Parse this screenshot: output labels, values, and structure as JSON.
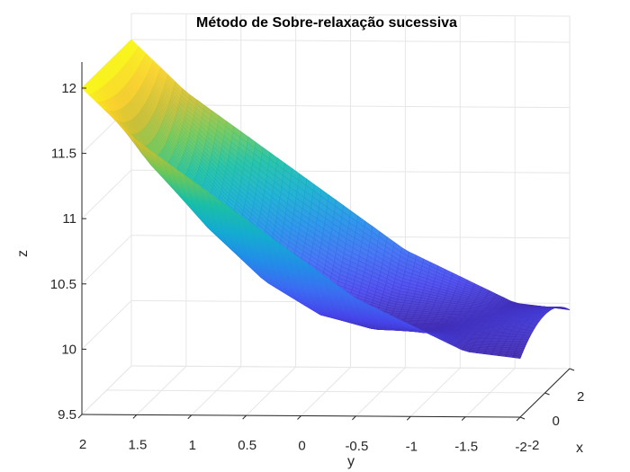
{
  "chart_data": {
    "type": "surface",
    "title": "Método de Sobre-relaxação sucessiva",
    "xlabel": "x",
    "ylabel": "y",
    "zlabel": "z",
    "xlim": [
      -2,
      2
    ],
    "ylim": [
      -2,
      2
    ],
    "zlim": [
      9.5,
      12.2
    ],
    "x_ticks": [
      "-2",
      "0",
      "2"
    ],
    "y_ticks": [
      "2",
      "1.5",
      "1",
      "0.5",
      "0",
      "-0.5",
      "-1",
      "-1.5",
      "-2"
    ],
    "z_ticks": [
      "9.5",
      "10",
      "10.5",
      "11",
      "11.5",
      "12"
    ],
    "grid": true,
    "colormap": [
      "#3e26a8",
      "#4746eb",
      "#3b6df2",
      "#218fe7",
      "#14adcf",
      "#1bbfa4",
      "#6bc75a",
      "#c6be35",
      "#f9d02a",
      "#f9fb15"
    ],
    "surface_samples": {
      "y": [
        2,
        1.5,
        1,
        0.5,
        0,
        -0.5,
        -1,
        -1.5,
        -2
      ],
      "z_edge_x_plus2": [
        12.0,
        11.6,
        11.3,
        11.0,
        10.7,
        10.4,
        10.2,
        10.0,
        9.95
      ],
      "z_center_x0": [
        12.0,
        11.25,
        10.75,
        10.35,
        10.1,
        10.0,
        10.0,
        10.05,
        10.1
      ]
    }
  }
}
